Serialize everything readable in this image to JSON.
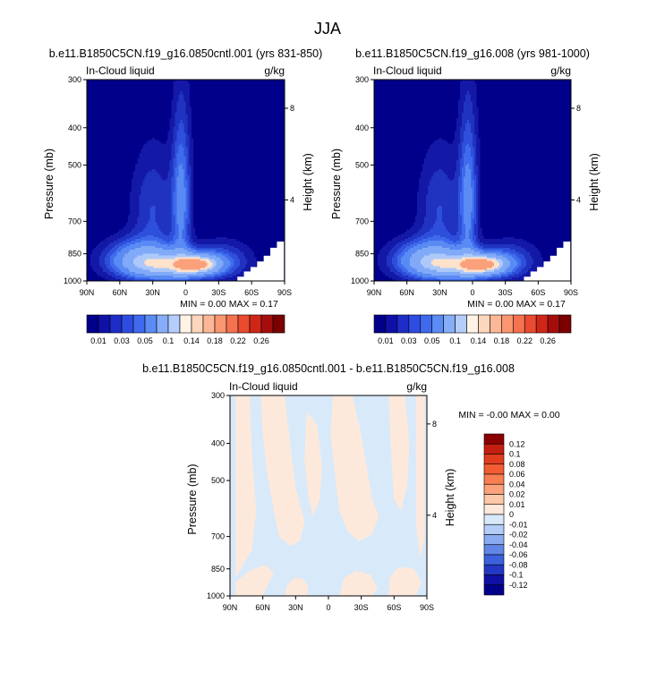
{
  "page_title": "JJA",
  "colors": {
    "plot_bg": "#00008B",
    "missing": "#FFFFFF",
    "diff_pos": "#FDE9DB",
    "diff_neg": "#D8E9FA"
  },
  "chart_data": [
    {
      "id": "panel1",
      "type": "heatmap",
      "title": "b.e11.B1850C5CN.f19_g16.0850cntl.001 (yrs 831-850)",
      "left_label": "In-Cloud liquid",
      "right_label": "g/kg",
      "ylabel": "Pressure (mb)",
      "ylabel_right": "Height (km)",
      "x_ticks": [
        "90N",
        "60N",
        "30N",
        "0",
        "30S",
        "60S",
        "90S"
      ],
      "y_ticks": [
        "300",
        "400",
        "500",
        "700",
        "850",
        "1000"
      ],
      "y_tick_values": [
        300,
        400,
        500,
        700,
        850,
        1000
      ],
      "y_right_ticks": [
        "8",
        "4"
      ],
      "ylim": [
        300,
        1000
      ],
      "xlim": [
        90,
        -90
      ],
      "stats": "MIN =   0.00   MAX =   0.17",
      "colorbar": {
        "labels": [
          "0.01",
          "0.03",
          "0.05",
          "0.1",
          "0.14",
          "0.18",
          "0.22",
          "0.26"
        ],
        "colors": [
          "#00008B",
          "#1010A8",
          "#1E2DC8",
          "#2E4CE0",
          "#3F6AEE",
          "#5B8BF4",
          "#86AEF8",
          "#B4CDFB",
          "#FFF3E6",
          "#FDD7BD",
          "#FCB896",
          "#FA9670",
          "#F57250",
          "#E94A30",
          "#CF2618",
          "#A50D0D",
          "#7B0000"
        ]
      },
      "field": {
        "levels": [
          0.01,
          0.02,
          0.03,
          0.04,
          0.05,
          0.07,
          0.1,
          0.12,
          0.14
        ],
        "level_colors": [
          "#1418A6",
          "#1F33C0",
          "#2E4FDB",
          "#3E6BEC",
          "#5A8AF3",
          "#80A9F7",
          "#ADC9FA",
          "#FDE2CC",
          "#FAA07A"
        ],
        "blobs": [
          {
            "lat": 42,
            "p": 880,
            "slat": 22,
            "sp": 70,
            "amp": 0.075
          },
          {
            "lat": 8,
            "p": 915,
            "slat": 26,
            "sp": 55,
            "amp": 0.085
          },
          {
            "lat": -12,
            "p": 905,
            "slat": 13,
            "sp": 35,
            "amp": 0.09
          },
          {
            "lat": 4,
            "p": 610,
            "slat": 6,
            "sp": 200,
            "amp": 0.055
          },
          {
            "lat": 30,
            "p": 650,
            "slat": 14,
            "sp": 150,
            "amp": 0.03
          },
          {
            "lat": -35,
            "p": 880,
            "slat": 18,
            "sp": 70,
            "amp": 0.03
          }
        ],
        "missing_columns": [
          {
            "lat": -50,
            "p": 975
          },
          {
            "lat": -56,
            "p": 945
          },
          {
            "lat": -62,
            "p": 920
          },
          {
            "lat": -68,
            "p": 890
          },
          {
            "lat": -74,
            "p": 860
          },
          {
            "lat": -80,
            "p": 820
          },
          {
            "lat": -86,
            "p": 790
          }
        ]
      }
    },
    {
      "id": "panel2",
      "type": "heatmap",
      "title": "b.e11.B1850C5CN.f19_g16.008 (yrs 981-1000)",
      "left_label": "In-Cloud liquid",
      "right_label": "g/kg",
      "ylabel": "Pressure (mb)",
      "ylabel_right": "Height (km)",
      "x_ticks": [
        "90N",
        "60N",
        "30N",
        "0",
        "30S",
        "60S",
        "90S"
      ],
      "y_ticks": [
        "300",
        "400",
        "500",
        "700",
        "850",
        "1000"
      ],
      "y_tick_values": [
        300,
        400,
        500,
        700,
        850,
        1000
      ],
      "y_right_ticks": [
        "8",
        "4"
      ],
      "ylim": [
        300,
        1000
      ],
      "xlim": [
        90,
        -90
      ],
      "stats": "MIN =   0.00   MAX =   0.17",
      "colorbar": {
        "labels": [
          "0.01",
          "0.03",
          "0.05",
          "0.1",
          "0.14",
          "0.18",
          "0.22",
          "0.26"
        ],
        "colors": [
          "#00008B",
          "#1010A8",
          "#1E2DC8",
          "#2E4CE0",
          "#3F6AEE",
          "#5B8BF4",
          "#86AEF8",
          "#B4CDFB",
          "#FFF3E6",
          "#FDD7BD",
          "#FCB896",
          "#FA9670",
          "#F57250",
          "#E94A30",
          "#CF2618",
          "#A50D0D",
          "#7B0000"
        ]
      },
      "field": {
        "levels": [
          0.01,
          0.02,
          0.03,
          0.04,
          0.05,
          0.07,
          0.1,
          0.12,
          0.14
        ],
        "level_colors": [
          "#1418A6",
          "#1F33C0",
          "#2E4FDB",
          "#3E6BEC",
          "#5A8AF3",
          "#80A9F7",
          "#ADC9FA",
          "#FDE2CC",
          "#FAA07A"
        ],
        "blobs": [
          {
            "lat": 42,
            "p": 880,
            "slat": 22,
            "sp": 70,
            "amp": 0.075
          },
          {
            "lat": 8,
            "p": 915,
            "slat": 26,
            "sp": 55,
            "amp": 0.085
          },
          {
            "lat": -12,
            "p": 905,
            "slat": 13,
            "sp": 35,
            "amp": 0.09
          },
          {
            "lat": 4,
            "p": 610,
            "slat": 6,
            "sp": 200,
            "amp": 0.055
          },
          {
            "lat": 30,
            "p": 650,
            "slat": 14,
            "sp": 150,
            "amp": 0.03
          },
          {
            "lat": -35,
            "p": 880,
            "slat": 18,
            "sp": 70,
            "amp": 0.03
          }
        ],
        "missing_columns": [
          {
            "lat": -50,
            "p": 975
          },
          {
            "lat": -56,
            "p": 945
          },
          {
            "lat": -62,
            "p": 920
          },
          {
            "lat": -68,
            "p": 890
          },
          {
            "lat": -74,
            "p": 860
          },
          {
            "lat": -80,
            "p": 820
          },
          {
            "lat": -86,
            "p": 790
          }
        ]
      }
    },
    {
      "id": "panel3",
      "type": "heatmap",
      "title": "b.e11.B1850C5CN.f19_g16.0850cntl.001 - b.e11.B1850C5CN.f19_g16.008",
      "left_label": "In-Cloud liquid",
      "right_label": "g/kg",
      "ylabel": "Pressure (mb)",
      "ylabel_right": "Height (km)",
      "x_ticks": [
        "90N",
        "60N",
        "30N",
        "0",
        "30S",
        "60S",
        "90S"
      ],
      "y_ticks": [
        "300",
        "400",
        "500",
        "700",
        "850",
        "1000"
      ],
      "y_tick_values": [
        300,
        400,
        500,
        700,
        850,
        1000
      ],
      "y_right_ticks": [
        "8",
        "4"
      ],
      "ylim": [
        300,
        1000
      ],
      "xlim": [
        90,
        -90
      ],
      "stats": "MIN =  -0.00   MAX =   0.00",
      "colorbar": {
        "labels": [
          "0.12",
          "0.1",
          "0.08",
          "0.06",
          "0.04",
          "0.02",
          "0.01",
          "0",
          "-0.01",
          "-0.02",
          "-0.04",
          "-0.06",
          "-0.08",
          "-0.1",
          "-0.12"
        ],
        "colors": [
          "#8B0000",
          "#C41E10",
          "#E23C1E",
          "#F35D33",
          "#F97E52",
          "#FBA27C",
          "#FDC8A8",
          "#FDE9DB",
          "#D8E9FA",
          "#B3CDF7",
          "#8AABF1",
          "#6186E8",
          "#3D60DC",
          "#2238C4",
          "#1010A4",
          "#00008B"
        ]
      }
    }
  ]
}
